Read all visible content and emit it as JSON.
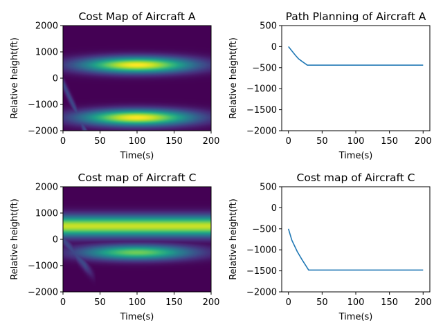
{
  "figure": {
    "background": "#ffffff"
  },
  "chart_data": [
    {
      "type": "heatmap",
      "title": "Cost Map of Aircraft A",
      "xlabel": "Time(s)",
      "ylabel": "Relative height(ft)",
      "xlim": [
        0,
        200
      ],
      "ylim": [
        -2000,
        2000
      ],
      "xticks": [
        "0",
        "50",
        "100",
        "150",
        "200"
      ],
      "yticks": [
        "2000",
        "1000",
        "0",
        "−1000",
        "−2000"
      ],
      "colormap": "viridis",
      "hotspots": [
        {
          "time": 100,
          "height": 500,
          "intensity": 1.0,
          "time_spread": 75,
          "height_spread": 300
        },
        {
          "time": 100,
          "height": -1500,
          "intensity": 1.0,
          "time_spread": 75,
          "height_spread": 300
        }
      ],
      "faint_band": {
        "from": [
          0,
          -200
        ],
        "to": [
          30,
          -2000
        ],
        "intensity": 0.22
      }
    },
    {
      "type": "line",
      "title": "Path Planning of Aircraft A",
      "xlabel": "Time(s)",
      "ylabel": "Relative height(ft)",
      "xlim": [
        -10,
        210
      ],
      "ylim": [
        -2000,
        500
      ],
      "xticks": [
        "0",
        "50",
        "100",
        "150",
        "200"
      ],
      "yticks": [
        "500",
        "0",
        "−500",
        "−1000",
        "−1500",
        "−2000"
      ],
      "color": "#1f77b4",
      "x": [
        0,
        5,
        10,
        15,
        20,
        28,
        50,
        100,
        150,
        200
      ],
      "y": [
        0,
        -100,
        -200,
        -290,
        -350,
        -440,
        -440,
        -440,
        -440,
        -440
      ]
    },
    {
      "type": "heatmap",
      "title": "Cost map of Aircraft C",
      "xlabel": "Time(s)",
      "ylabel": "Relative height(ft)",
      "xlim": [
        0,
        200
      ],
      "ylim": [
        -2000,
        2000
      ],
      "xticks": [
        "0",
        "50",
        "100",
        "150",
        "200"
      ],
      "yticks": [
        "2000",
        "1000",
        "0",
        "−1000",
        "−2000"
      ],
      "colormap": "viridis",
      "band": {
        "height": 500,
        "intensity": 0.92,
        "height_spread": 380
      },
      "hotspots": [
        {
          "time": 100,
          "height": -500,
          "intensity": 0.78,
          "time_spread": 75,
          "height_spread": 280
        }
      ],
      "faint_band": {
        "from": [
          0,
          0
        ],
        "to": [
          30,
          -1000
        ],
        "intensity": 0.22
      }
    },
    {
      "type": "line",
      "title": "Cost map of Aircraft C",
      "xlabel": "Time(s)",
      "ylabel": "Relative height(ft)",
      "xlim": [
        -10,
        210
      ],
      "ylim": [
        -2000,
        500
      ],
      "xticks": [
        "0",
        "50",
        "100",
        "150",
        "200"
      ],
      "yticks": [
        "500",
        "0",
        "−500",
        "−1000",
        "−1500",
        "−2000"
      ],
      "color": "#1f77b4",
      "x": [
        0,
        5,
        13,
        20,
        30,
        50,
        100,
        150,
        200
      ],
      "y": [
        -500,
        -770,
        -1040,
        -1230,
        -1480,
        -1480,
        -1480,
        -1480,
        -1480
      ]
    }
  ]
}
